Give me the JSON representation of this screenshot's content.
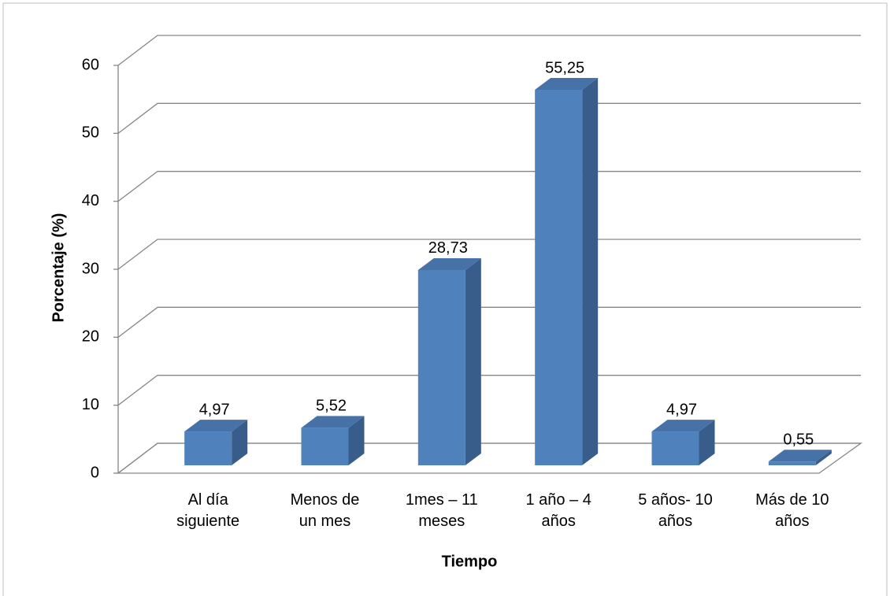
{
  "chart_data": {
    "type": "bar3d",
    "categories": [
      "Al día siguiente",
      "Menos de un mes",
      "1mes – 11 meses",
      "1 año – 4 años",
      "5 años- 10 años",
      "Más de 10 años"
    ],
    "values": [
      4.97,
      5.52,
      28.73,
      55.25,
      4.97,
      0.55
    ],
    "value_labels": [
      "4,97",
      "5,52",
      "28,73",
      "55,25",
      "4,97",
      "0,55"
    ],
    "color": "#4f81bd",
    "ylim": [
      0,
      60
    ],
    "yticks": [
      0,
      10,
      20,
      30,
      40,
      50,
      60
    ],
    "grid": true,
    "xlabel": "Tiempo",
    "ylabel": "Porcentaje (%)"
  }
}
